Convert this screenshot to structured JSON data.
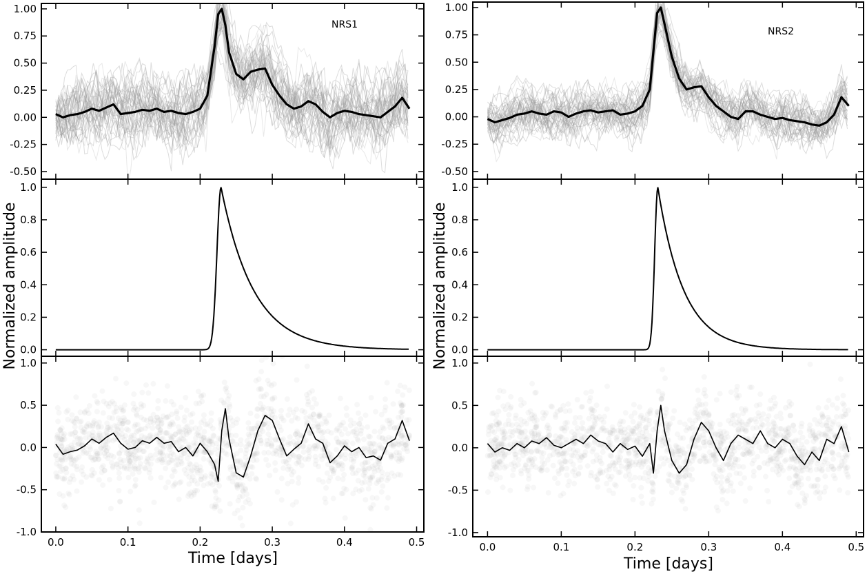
{
  "figure": {
    "ylabel": "Normalized amplitude",
    "xlabel": "Time [days]"
  },
  "chart_data": [
    {
      "type": "line",
      "panel": "NRS1 (top)",
      "label": "NRS1",
      "xlim": [
        -0.02,
        0.51
      ],
      "ylim": [
        -0.57,
        1.05
      ],
      "yticks": [
        "-0.50",
        "-0.25",
        "0.00",
        "0.25",
        "0.50",
        "0.75",
        "1.00"
      ],
      "series": [
        {
          "style": "thick mean curve",
          "x": [
            0.0,
            0.01,
            0.02,
            0.03,
            0.04,
            0.05,
            0.06,
            0.07,
            0.08,
            0.09,
            0.1,
            0.11,
            0.12,
            0.13,
            0.14,
            0.15,
            0.16,
            0.17,
            0.18,
            0.19,
            0.2,
            0.21,
            0.22,
            0.225,
            0.23,
            0.235,
            0.24,
            0.25,
            0.26,
            0.27,
            0.28,
            0.29,
            0.3,
            0.31,
            0.32,
            0.33,
            0.34,
            0.35,
            0.36,
            0.37,
            0.38,
            0.39,
            0.4,
            0.41,
            0.42,
            0.43,
            0.44,
            0.45,
            0.46,
            0.47,
            0.48,
            0.49
          ],
          "y": [
            0.03,
            0.0,
            0.02,
            0.03,
            0.05,
            0.08,
            0.06,
            0.09,
            0.12,
            0.03,
            0.04,
            0.05,
            0.07,
            0.06,
            0.08,
            0.05,
            0.06,
            0.04,
            0.03,
            0.05,
            0.08,
            0.2,
            0.65,
            0.95,
            1.0,
            0.85,
            0.6,
            0.4,
            0.35,
            0.42,
            0.44,
            0.45,
            0.3,
            0.2,
            0.12,
            0.08,
            0.1,
            0.15,
            0.12,
            0.05,
            0.0,
            0.04,
            0.06,
            0.05,
            0.03,
            0.02,
            0.01,
            0.0,
            0.05,
            0.1,
            0.18,
            0.08
          ]
        }
      ],
      "band": {
        "style": "light grey spread of individual curves",
        "lower_offset": -0.35,
        "upper_offset": 0.4
      }
    },
    {
      "type": "line",
      "panel": "NRS1 (middle)",
      "xlim": [
        -0.02,
        0.51
      ],
      "ylim": [
        -0.04,
        1.05
      ],
      "yticks": [
        "0.0",
        "0.2",
        "0.4",
        "0.6",
        "0.8",
        "1.0"
      ],
      "model": {
        "peak_x": 0.229,
        "rise_width": 0.008,
        "decay_tau": 0.045,
        "baseline": 0.0
      }
    },
    {
      "type": "scatter",
      "panel": "NRS1 (bottom)",
      "xlim": [
        -0.02,
        0.51
      ],
      "ylim": [
        -1.0,
        1.08
      ],
      "yticks": [
        "-1.0",
        "-0.5",
        "0.0",
        "0.5",
        "1.0"
      ],
      "xticks": [
        "0.0",
        "0.1",
        "0.2",
        "0.3",
        "0.4",
        "0.5"
      ],
      "series": [
        {
          "style": "thin residual curve",
          "x": [
            0.0,
            0.01,
            0.02,
            0.03,
            0.04,
            0.05,
            0.06,
            0.07,
            0.08,
            0.09,
            0.1,
            0.11,
            0.12,
            0.13,
            0.14,
            0.15,
            0.16,
            0.17,
            0.18,
            0.19,
            0.2,
            0.21,
            0.22,
            0.225,
            0.23,
            0.235,
            0.24,
            0.25,
            0.26,
            0.27,
            0.28,
            0.29,
            0.3,
            0.31,
            0.32,
            0.33,
            0.34,
            0.35,
            0.36,
            0.37,
            0.38,
            0.39,
            0.4,
            0.41,
            0.42,
            0.43,
            0.44,
            0.45,
            0.46,
            0.47,
            0.48,
            0.49
          ],
          "y": [
            0.04,
            -0.08,
            -0.05,
            -0.03,
            0.02,
            0.1,
            0.05,
            0.12,
            0.17,
            0.05,
            -0.02,
            0.0,
            0.08,
            0.05,
            0.12,
            0.05,
            0.07,
            -0.05,
            0.0,
            -0.1,
            0.05,
            -0.05,
            -0.2,
            -0.4,
            0.2,
            0.46,
            0.1,
            -0.3,
            -0.35,
            -0.1,
            0.2,
            0.38,
            0.32,
            0.1,
            -0.1,
            -0.02,
            0.05,
            0.28,
            0.1,
            0.05,
            -0.18,
            -0.1,
            0.02,
            -0.05,
            0.0,
            -0.12,
            -0.1,
            -0.15,
            0.05,
            0.1,
            0.32,
            0.08
          ]
        }
      ],
      "scatter_spread": 0.28
    },
    {
      "type": "line",
      "panel": "NRS2 (top)",
      "label": "NRS2",
      "xlim": [
        -0.02,
        0.51
      ],
      "ylim": [
        -0.57,
        1.05
      ],
      "yticks": [
        "-0.50",
        "-0.25",
        "0.00",
        "0.25",
        "0.50",
        "0.75",
        "1.00"
      ],
      "series": [
        {
          "style": "thick mean curve",
          "x": [
            0.0,
            0.01,
            0.02,
            0.03,
            0.04,
            0.05,
            0.06,
            0.07,
            0.08,
            0.09,
            0.1,
            0.11,
            0.12,
            0.13,
            0.14,
            0.15,
            0.16,
            0.17,
            0.18,
            0.19,
            0.2,
            0.21,
            0.22,
            0.225,
            0.23,
            0.235,
            0.24,
            0.25,
            0.26,
            0.27,
            0.28,
            0.29,
            0.3,
            0.31,
            0.32,
            0.33,
            0.34,
            0.35,
            0.36,
            0.37,
            0.38,
            0.39,
            0.4,
            0.41,
            0.42,
            0.43,
            0.44,
            0.45,
            0.46,
            0.47,
            0.48,
            0.49
          ],
          "y": [
            -0.02,
            -0.05,
            -0.03,
            -0.01,
            0.02,
            0.03,
            0.05,
            0.03,
            0.02,
            0.05,
            0.04,
            0.0,
            0.03,
            0.05,
            0.06,
            0.04,
            0.05,
            0.06,
            0.02,
            0.03,
            0.05,
            0.1,
            0.25,
            0.6,
            0.95,
            1.0,
            0.85,
            0.55,
            0.35,
            0.25,
            0.27,
            0.28,
            0.18,
            0.1,
            0.05,
            0.0,
            -0.02,
            0.05,
            0.05,
            0.02,
            0.0,
            -0.02,
            -0.01,
            -0.03,
            -0.04,
            -0.05,
            -0.07,
            -0.08,
            -0.05,
            0.02,
            0.18,
            0.1
          ]
        }
      ],
      "band": {
        "style": "light grey spread of individual curves",
        "lower_offset": -0.25,
        "upper_offset": 0.25
      }
    },
    {
      "type": "line",
      "panel": "NRS2 (middle)",
      "xlim": [
        -0.02,
        0.51
      ],
      "ylim": [
        -0.04,
        1.05
      ],
      "yticks": [
        "0.0",
        "0.2",
        "0.4",
        "0.6",
        "0.8",
        "1.0"
      ],
      "model": {
        "peak_x": 0.231,
        "rise_width": 0.006,
        "decay_tau": 0.035,
        "baseline": 0.0
      }
    },
    {
      "type": "scatter",
      "panel": "NRS2 (bottom)",
      "xlim": [
        -0.02,
        0.51
      ],
      "ylim": [
        -1.05,
        1.08
      ],
      "yticks": [
        "-1.0",
        "-0.5",
        "0.0",
        "0.5",
        "1.0"
      ],
      "xticks": [
        "0.0",
        "0.1",
        "0.2",
        "0.3",
        "0.4",
        "0.5"
      ],
      "series": [
        {
          "style": "thin residual curve",
          "x": [
            0.0,
            0.01,
            0.02,
            0.03,
            0.04,
            0.05,
            0.06,
            0.07,
            0.08,
            0.09,
            0.1,
            0.11,
            0.12,
            0.13,
            0.14,
            0.15,
            0.16,
            0.17,
            0.18,
            0.19,
            0.2,
            0.21,
            0.22,
            0.225,
            0.23,
            0.235,
            0.24,
            0.25,
            0.26,
            0.27,
            0.28,
            0.29,
            0.3,
            0.31,
            0.32,
            0.33,
            0.34,
            0.35,
            0.36,
            0.37,
            0.38,
            0.39,
            0.4,
            0.41,
            0.42,
            0.43,
            0.44,
            0.45,
            0.46,
            0.47,
            0.48,
            0.49
          ],
          "y": [
            0.05,
            -0.05,
            0.0,
            -0.03,
            0.05,
            0.0,
            0.08,
            0.05,
            0.12,
            0.03,
            0.0,
            0.05,
            0.1,
            0.05,
            0.15,
            0.08,
            0.05,
            -0.05,
            0.05,
            -0.02,
            0.02,
            -0.1,
            0.05,
            -0.3,
            0.2,
            0.5,
            0.2,
            -0.15,
            -0.3,
            -0.2,
            0.1,
            0.3,
            0.2,
            0.0,
            -0.15,
            0.05,
            0.15,
            0.1,
            0.05,
            0.2,
            0.05,
            0.0,
            0.1,
            0.05,
            -0.1,
            -0.2,
            -0.05,
            -0.15,
            0.1,
            0.05,
            0.25,
            -0.05
          ]
        }
      ],
      "scatter_spread": 0.25
    }
  ]
}
